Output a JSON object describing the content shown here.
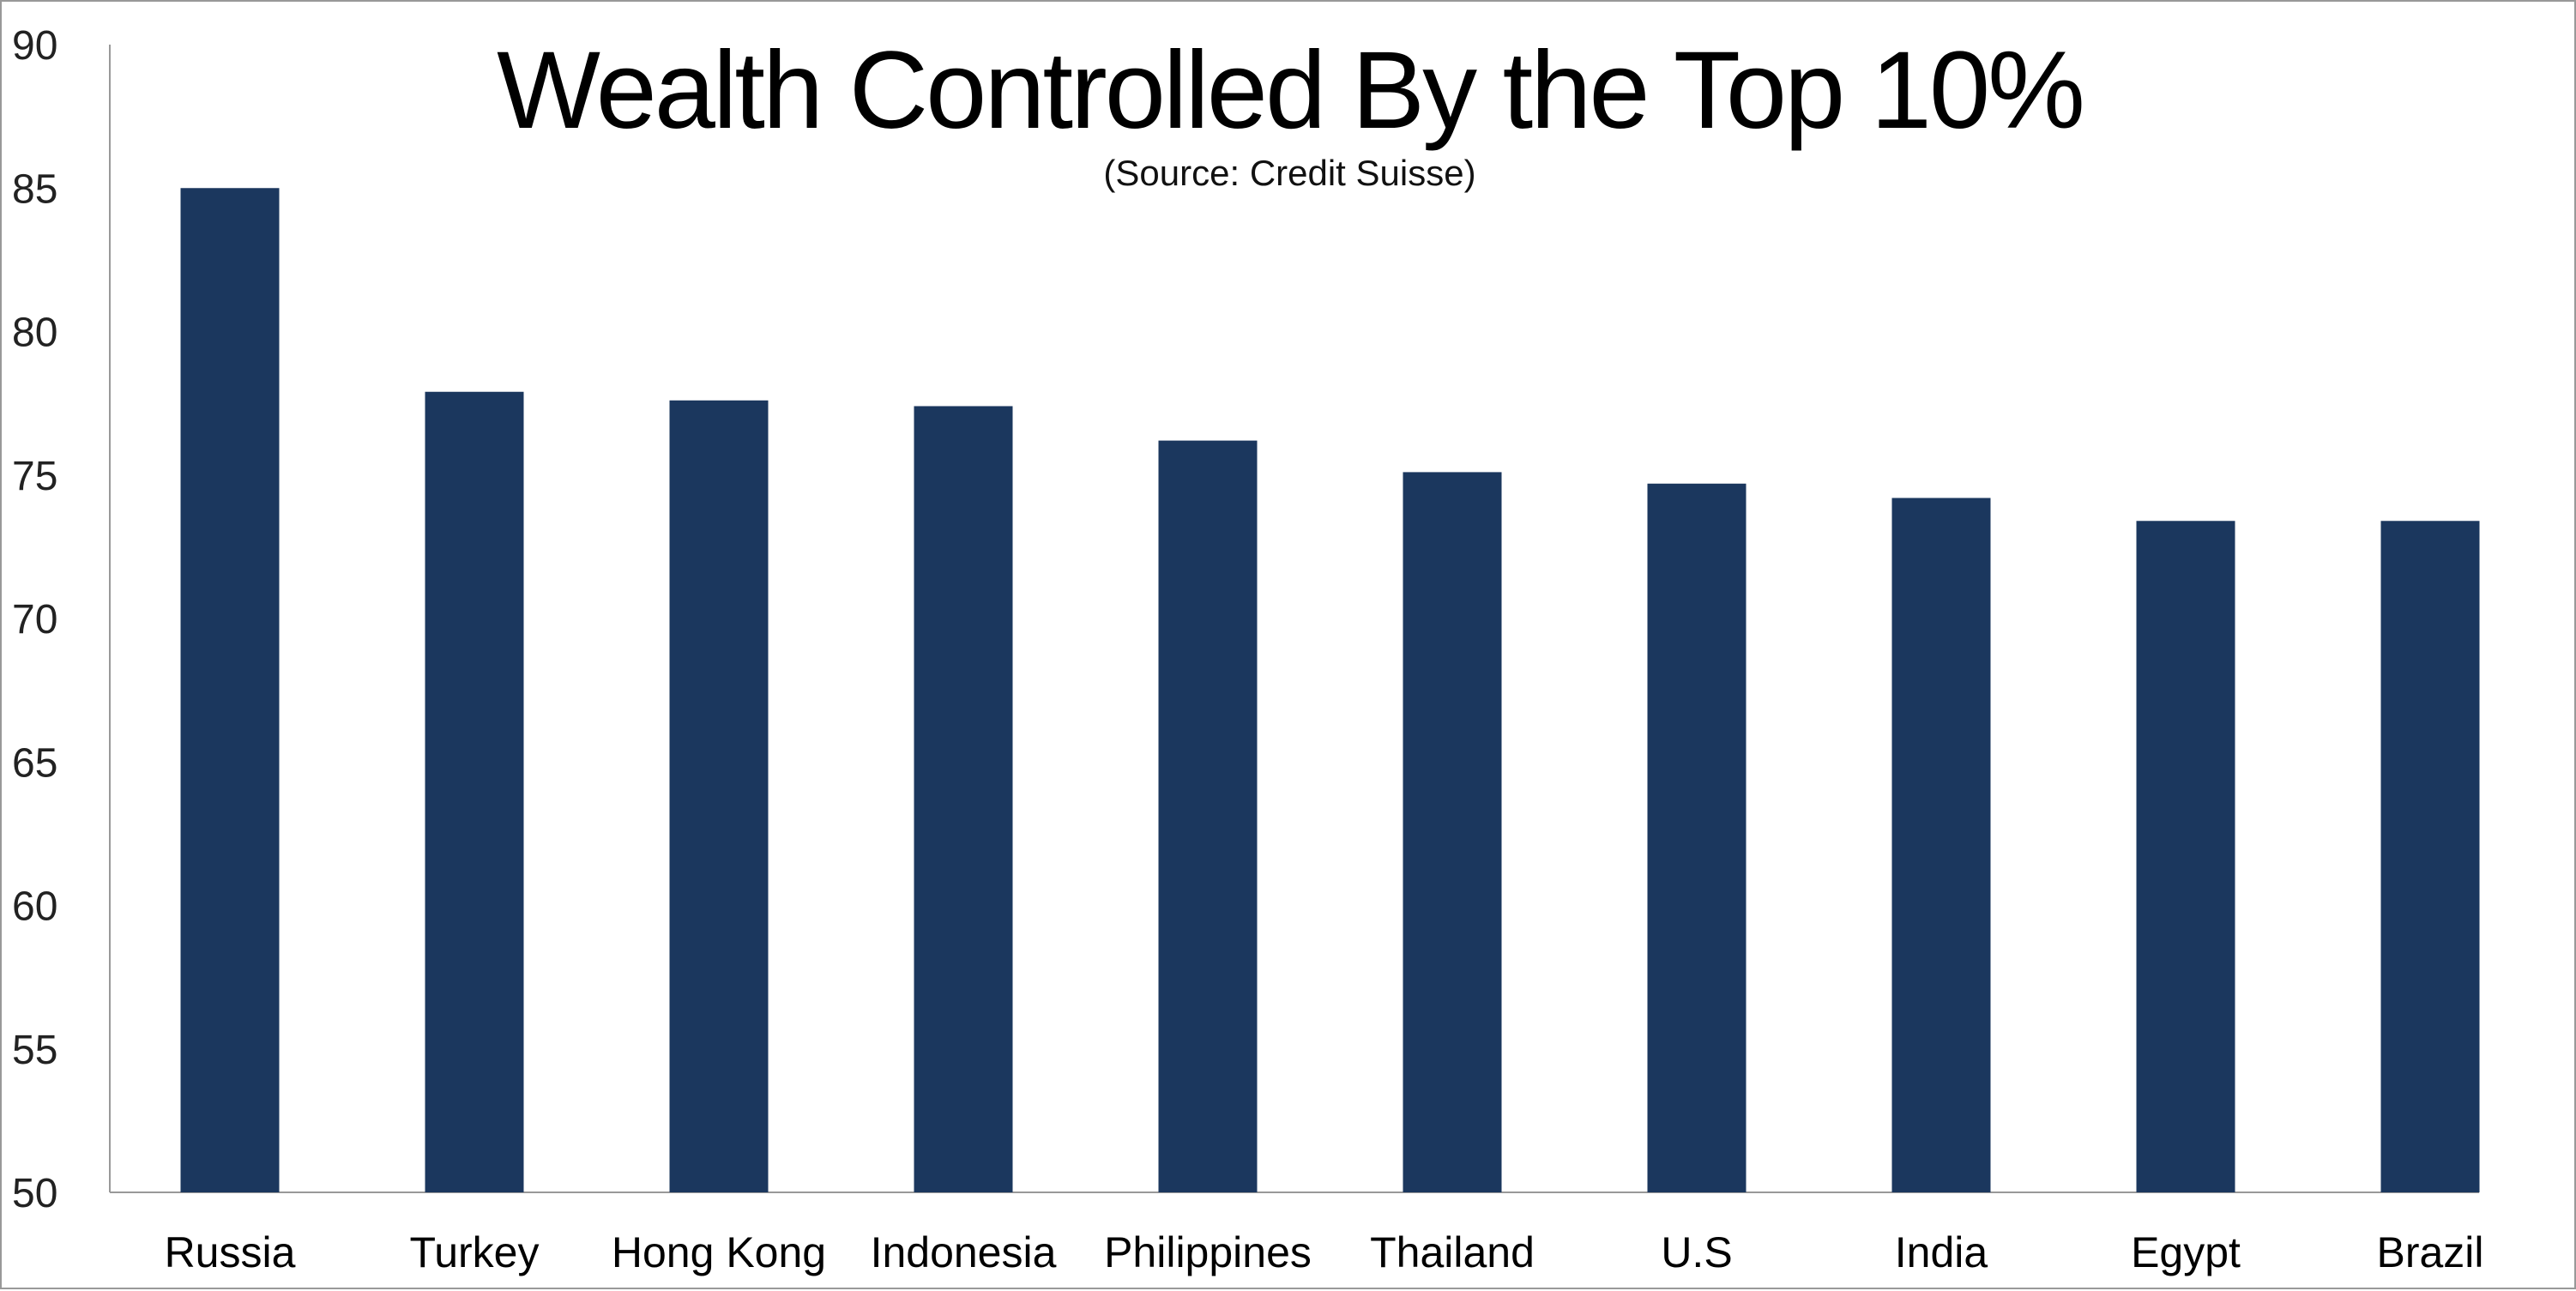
{
  "chart_data": {
    "type": "bar",
    "title": "Wealth Controlled By the Top 10%",
    "subtitle": "(Source: Credit Suisse)",
    "xlabel": "",
    "ylabel": "",
    "categories": [
      "Russia",
      "Turkey",
      "Hong Kong",
      "Indonesia",
      "Philippines",
      "Thailand",
      "U.S",
      "India",
      "Egypt",
      "Brazil"
    ],
    "values": [
      85.0,
      77.9,
      77.6,
      77.4,
      76.2,
      75.1,
      74.7,
      74.2,
      73.4,
      73.4
    ],
    "ylim": [
      50,
      90
    ],
    "yticks": [
      "50",
      "55",
      "60",
      "65",
      "70",
      "75",
      "80",
      "85",
      "90"
    ],
    "grid": false,
    "bar_color": "#1b375e"
  }
}
